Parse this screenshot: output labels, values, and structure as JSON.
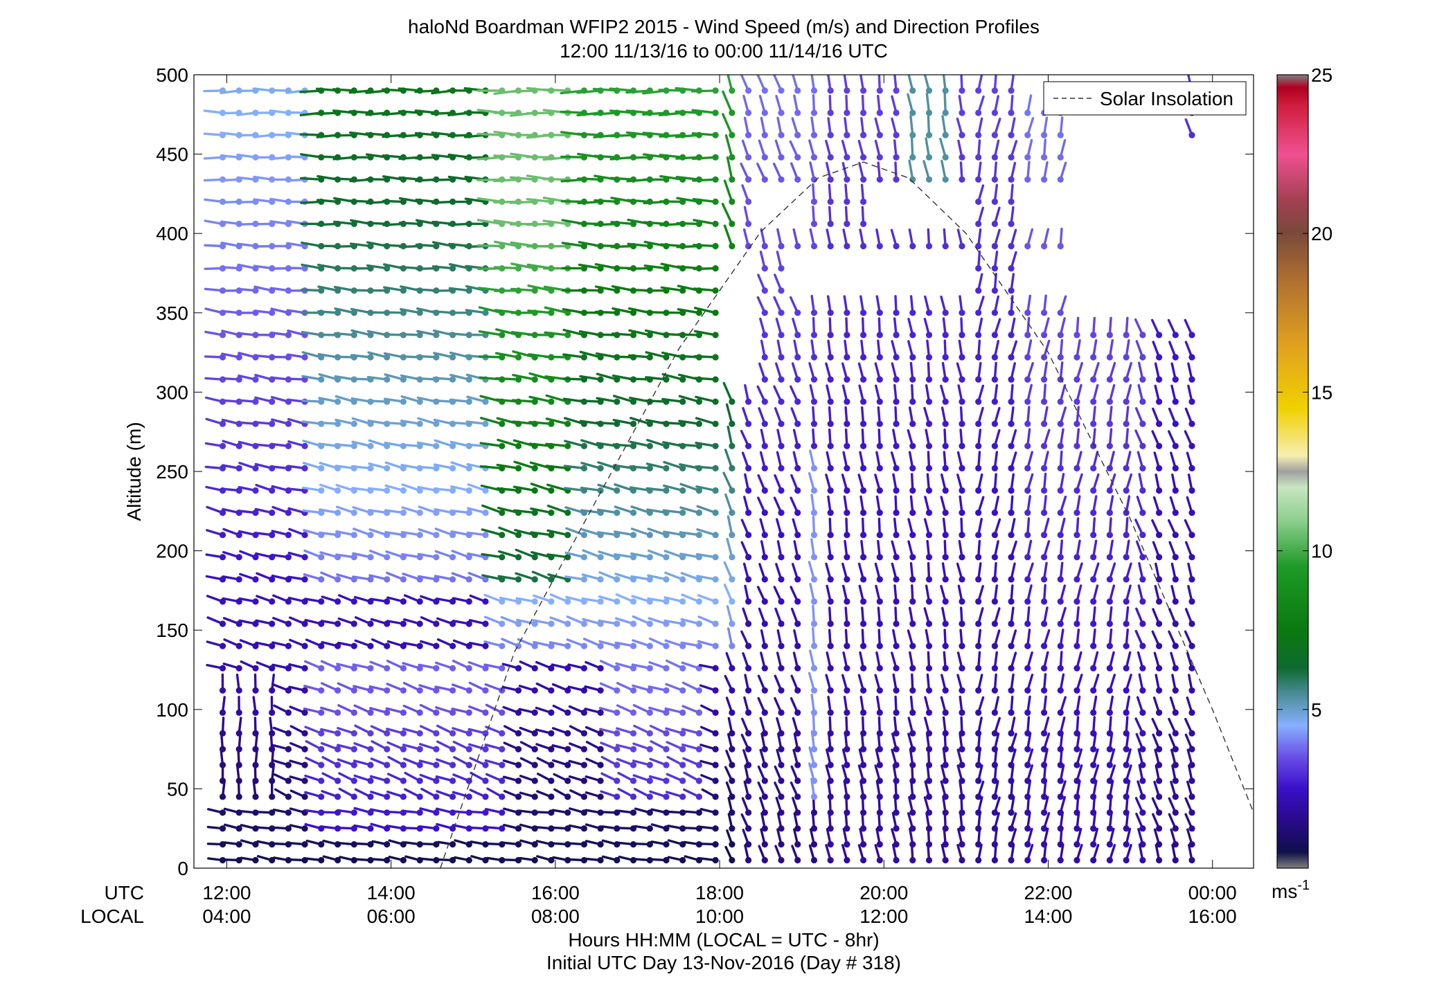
{
  "chart_data": {
    "type": "wind-barb-profile",
    "title": "haloNd Boardman WFIP2 2015 - Wind Speed (m/s) and Direction Profiles",
    "subtitle": "12:00 11/13/16 to 00:00 11/14/16  UTC",
    "ylabel": "Altitude (m)",
    "xlabel": "Hours HH:MM  (LOCAL = UTC - 8hr)",
    "xlabel2": "Initial UTC Day 13-Nov-2016 (Day # 318)",
    "row_label_utc": "UTC",
    "row_label_local": "LOCAL",
    "ylim": [
      0,
      500
    ],
    "yticks": [
      "0",
      "50",
      "100",
      "150",
      "200",
      "250",
      "300",
      "350",
      "400",
      "450",
      "500"
    ],
    "xlim_hours": [
      11.6,
      24.5
    ],
    "xticks_utc": [
      "12:00",
      "14:00",
      "16:00",
      "18:00",
      "20:00",
      "22:00",
      "00:00"
    ],
    "xticks_local": [
      "04:00",
      "06:00",
      "08:00",
      "10:00",
      "12:00",
      "14:00",
      "16:00"
    ],
    "legend": {
      "label": "Solar Insolation",
      "placement": "top-right"
    },
    "colorbar": {
      "range": [
        0,
        25
      ],
      "ticks": [
        "5",
        "10",
        "15",
        "20",
        "25"
      ],
      "unit": "ms",
      "unit_exponent": "-1",
      "stops": [
        {
          "v": 0.0,
          "c": "#7f7f7f"
        },
        {
          "v": 0.5,
          "c": "#10104a"
        },
        {
          "v": 1.5,
          "c": "#2a0a8a"
        },
        {
          "v": 2.5,
          "c": "#3a10c8"
        },
        {
          "v": 3.5,
          "c": "#6a4ee6"
        },
        {
          "v": 4.5,
          "c": "#86b0ff"
        },
        {
          "v": 5.5,
          "c": "#4a8c96"
        },
        {
          "v": 6.3,
          "c": "#0e6a30"
        },
        {
          "v": 7.5,
          "c": "#0a7a10"
        },
        {
          "v": 9.5,
          "c": "#1e9a28"
        },
        {
          "v": 11.0,
          "c": "#90d090"
        },
        {
          "v": 12.0,
          "c": "#c8e6c0"
        },
        {
          "v": 12.5,
          "c": "#a0a0a0"
        },
        {
          "v": 13.0,
          "c": "#f6eeb0"
        },
        {
          "v": 14.5,
          "c": "#f0d000"
        },
        {
          "v": 16.5,
          "c": "#e0a020"
        },
        {
          "v": 18.5,
          "c": "#b07030"
        },
        {
          "v": 20.0,
          "c": "#7a4a3a"
        },
        {
          "v": 21.0,
          "c": "#a04050"
        },
        {
          "v": 22.5,
          "c": "#f05090"
        },
        {
          "v": 24.0,
          "c": "#d02040"
        },
        {
          "v": 24.6,
          "c": "#b00020"
        },
        {
          "v": 25.0,
          "c": "#7f7f7f"
        }
      ]
    },
    "solar_insolation_peak": {
      "x_hours": 19.75,
      "altitude_m": 445
    },
    "solar_insolation_x_hours": [
      14.6,
      15.5,
      16.5,
      17.5,
      18.5,
      19.2,
      19.75,
      20.3,
      21.0,
      22.0,
      23.0,
      24.0,
      24.5
    ],
    "solar_insolation_alt_m": [
      0,
      136,
      232,
      327,
      401,
      435,
      445,
      435,
      400,
      325,
      220,
      100,
      35
    ],
    "wind_barbs": {
      "x_start_hours": 11.95,
      "x_step_hours": 0.2,
      "x_end_hours": 23.9,
      "note": "Barbs (head dot + direction shaft) drawn on a time x altitude grid; color = speed (m/s)."
    }
  }
}
